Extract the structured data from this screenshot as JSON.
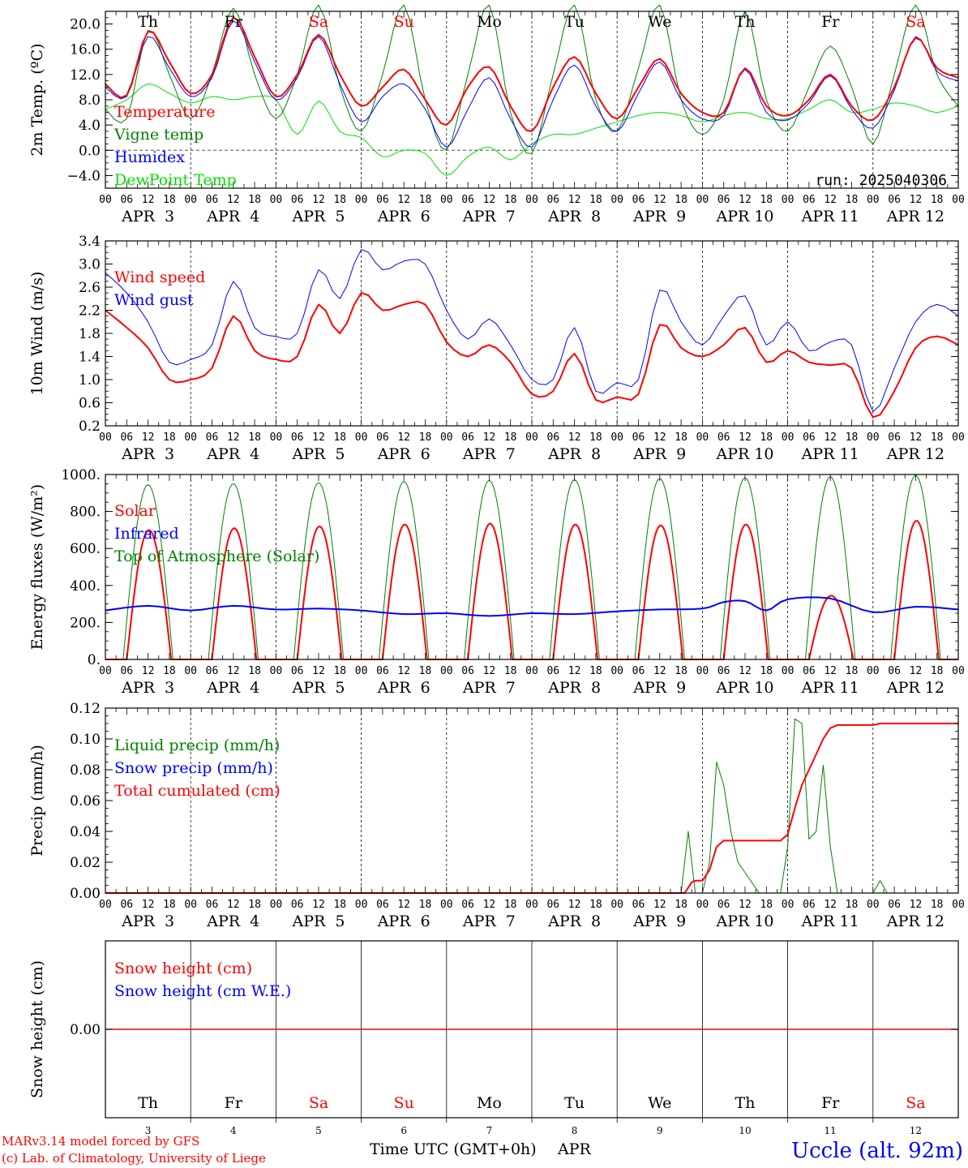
{
  "colors": {
    "red": "#ff0000",
    "green": "#008000",
    "blue": "#0000ff",
    "lightgreen": "#00e000",
    "axis": "#000000"
  },
  "days": [
    "Th",
    "Fr",
    "Sa",
    "Su",
    "Mo",
    "Tu",
    "We",
    "Th",
    "Fr",
    "Sa"
  ],
  "weekend": [
    false,
    false,
    true,
    true,
    false,
    false,
    false,
    false,
    false,
    true
  ],
  "date_labels": [
    "APR  3",
    "APR  4",
    "APR  5",
    "APR  6",
    "APR  7",
    "APR  8",
    "APR  9",
    "APR 10",
    "APR 11",
    "APR 12"
  ],
  "hour_labels": [
    "00",
    "06",
    "12",
    "18"
  ],
  "day_numbers": [
    "3",
    "4",
    "5",
    "6",
    "7",
    "8",
    "9",
    "10",
    "11",
    "12"
  ],
  "footer": {
    "model": "MARv3.14 model forced by GFS",
    "lab": "(c) Lab. of Climatology, University of Liege",
    "xlabel": "Time UTC (GMT+0h)",
    "month": "APR",
    "station": "Uccle (alt. 92m)"
  },
  "chart_data": [
    {
      "type": "line",
      "id": "temperature",
      "ylabel": "2m Temp. (ºC)",
      "ylim": [
        -6,
        22
      ],
      "yticks": [
        -4,
        0,
        4,
        8,
        12,
        16,
        20
      ],
      "ytick_labels": [
        "−4.0",
        "0.0",
        "4.0",
        "8.0",
        "12.0",
        "16.0",
        "20.0"
      ],
      "zero_line": true,
      "annotation": "run: 2025040306",
      "x_hours": [
        0,
        6,
        12,
        18,
        24,
        30,
        36,
        42,
        48,
        54,
        60,
        66,
        72,
        78,
        84,
        90,
        96,
        102,
        108,
        114,
        120,
        126,
        132,
        138,
        144,
        150,
        156,
        162,
        168,
        174,
        180,
        186,
        192,
        198,
        204,
        210,
        216,
        222,
        228,
        234,
        240
      ],
      "series": [
        {
          "name": "Temperature",
          "color": "red",
          "values": [
            10.5,
            8.7,
            18.8,
            14.0,
            9.0,
            12.0,
            21.0,
            14.8,
            8.5,
            12.0,
            18.3,
            12.0,
            7.0,
            10.0,
            12.8,
            8.0,
            4.0,
            10.0,
            13.2,
            7.0,
            3.0,
            10.0,
            14.8,
            9.0,
            5.0,
            10.0,
            14.5,
            9.0,
            6.0,
            6.0,
            13.0,
            7.0,
            5.5,
            8.0,
            12.0,
            7.0,
            4.8,
            10.0,
            17.8,
            13.0,
            11.5
          ]
        },
        {
          "name": "Vigne temp",
          "color": "green",
          "values": [
            6.5,
            5.0,
            19.0,
            12.0,
            5.0,
            12.0,
            22.5,
            12.0,
            5.0,
            12.0,
            23.0,
            10.0,
            3.0,
            12.0,
            23.0,
            8.0,
            0.0,
            12.0,
            23.0,
            6.0,
            -0.5,
            12.0,
            23.0,
            8.0,
            3.0,
            13.0,
            23.0,
            8.0,
            2.5,
            8.0,
            22.0,
            8.0,
            3.0,
            10.0,
            16.5,
            10.0,
            1.0,
            12.0,
            23.0,
            12.0,
            7.0
          ]
        },
        {
          "name": "Humidex",
          "color": "blue",
          "values": [
            10.0,
            8.5,
            18.0,
            13.0,
            8.5,
            11.5,
            20.5,
            14.0,
            8.0,
            11.5,
            18.0,
            10.5,
            4.5,
            8.5,
            10.5,
            6.5,
            0.5,
            6.5,
            11.5,
            5.0,
            0.5,
            8.0,
            13.5,
            7.0,
            3.0,
            9.0,
            14.0,
            8.0,
            5.0,
            5.5,
            12.8,
            6.0,
            4.8,
            7.5,
            11.8,
            6.5,
            3.5,
            9.5,
            18.0,
            12.5,
            11.0
          ]
        },
        {
          "name": "DewPoint Temp",
          "color": "lightgreen",
          "values": [
            6.5,
            8.0,
            10.5,
            9.0,
            7.5,
            8.5,
            8.0,
            8.5,
            8.0,
            2.5,
            7.8,
            3.0,
            2.0,
            -1.0,
            0.0,
            -0.5,
            -4.0,
            -1.0,
            0.5,
            -1.5,
            1.0,
            2.5,
            2.5,
            3.5,
            4.5,
            5.5,
            6.0,
            5.5,
            4.5,
            5.5,
            6.0,
            5.0,
            5.0,
            6.5,
            8.0,
            6.0,
            6.5,
            7.5,
            7.0,
            6.0,
            7.0
          ]
        }
      ]
    },
    {
      "type": "line",
      "id": "wind",
      "ylabel": "10m Wind (m/s)",
      "ylim": [
        0.2,
        3.4
      ],
      "yticks": [
        0.2,
        0.6,
        1.0,
        1.4,
        1.8,
        2.2,
        2.6,
        3.0,
        3.4
      ],
      "ytick_labels": [
        "0.2",
        "0.6",
        "1.0",
        "1.4",
        "1.8",
        "2.2",
        "2.6",
        "3.0",
        "3.4"
      ],
      "x_hours": [
        0,
        6,
        12,
        18,
        24,
        30,
        36,
        42,
        48,
        54,
        60,
        66,
        72,
        78,
        84,
        90,
        96,
        102,
        108,
        114,
        120,
        126,
        132,
        138,
        144,
        150,
        156,
        162,
        168,
        174,
        180,
        186,
        192,
        198,
        204,
        210,
        216,
        222,
        228,
        234,
        240
      ],
      "series": [
        {
          "name": "Wind speed",
          "color": "red",
          "values": [
            2.2,
            1.9,
            1.55,
            1.0,
            1.0,
            1.2,
            2.1,
            1.5,
            1.35,
            1.4,
            2.3,
            1.8,
            2.5,
            2.2,
            2.3,
            2.3,
            1.65,
            1.4,
            1.6,
            1.3,
            0.75,
            0.8,
            1.45,
            0.65,
            0.7,
            0.75,
            1.95,
            1.55,
            1.4,
            1.6,
            1.9,
            1.3,
            1.5,
            1.3,
            1.25,
            1.2,
            0.35,
            0.8,
            1.55,
            1.75,
            1.6
          ]
        },
        {
          "name": "Wind gust",
          "color": "blue",
          "values": [
            2.85,
            2.5,
            2.0,
            1.3,
            1.35,
            1.6,
            2.7,
            1.9,
            1.75,
            1.8,
            2.9,
            2.4,
            3.25,
            2.9,
            3.05,
            3.0,
            2.2,
            1.7,
            2.05,
            1.6,
            1.0,
            1.0,
            1.9,
            0.8,
            0.95,
            1.0,
            2.55,
            2.0,
            1.6,
            2.1,
            2.45,
            1.6,
            2.0,
            1.5,
            1.65,
            1.6,
            0.45,
            1.2,
            2.0,
            2.3,
            2.1
          ]
        }
      ]
    },
    {
      "type": "line",
      "id": "energy",
      "ylabel": "Energy fluxes (W/m²)",
      "ylim": [
        0,
        1000
      ],
      "yticks": [
        0,
        200,
        400,
        600,
        800,
        1000
      ],
      "ytick_labels": [
        "0.",
        "200.",
        "400.",
        "600.",
        "800.",
        "1000."
      ],
      "day_peaks": {
        "solar": [
          700,
          710,
          720,
          730,
          735,
          730,
          725,
          730,
          345,
          750
        ],
        "top_of_atmosphere": [
          945,
          950,
          955,
          962,
          968,
          972,
          978,
          982,
          988,
          995
        ]
      },
      "infrared_hours": [
        0,
        12,
        24,
        36,
        48,
        60,
        72,
        84,
        96,
        108,
        120,
        132,
        144,
        156,
        168,
        174,
        180,
        186,
        192,
        204,
        216,
        228,
        240
      ],
      "infrared_values": [
        265,
        290,
        265,
        290,
        270,
        275,
        265,
        245,
        250,
        235,
        250,
        245,
        260,
        270,
        275,
        310,
        315,
        265,
        325,
        330,
        255,
        285,
        270
      ],
      "series": [
        {
          "name": "Solar",
          "color": "red"
        },
        {
          "name": "Infrared",
          "color": "blue"
        },
        {
          "name": "Top of Atmosphere (Solar)",
          "color": "green"
        }
      ]
    },
    {
      "type": "line",
      "id": "precip",
      "ylabel": "Precip (mm/h)",
      "ylim": [
        0,
        0.12
      ],
      "yticks": [
        0,
        0.02,
        0.04,
        0.06,
        0.08,
        0.1,
        0.12
      ],
      "ytick_labels": [
        "0.00",
        "0.02",
        "0.04",
        "0.06",
        "0.08",
        "0.10",
        "0.12"
      ],
      "series": [
        {
          "name": "Liquid precip (mm/h)",
          "color": "green",
          "x_hours": [
            0,
            162,
            164,
            166,
            168,
            170,
            172,
            174,
            176,
            178,
            184,
            190,
            192,
            194,
            196,
            198,
            200,
            202,
            204,
            206,
            210,
            216,
            218,
            220,
            240
          ],
          "values": [
            0,
            0,
            0.04,
            0.0,
            0.0,
            0.02,
            0.085,
            0.07,
            0.04,
            0.02,
            0.0,
            0.0,
            0.03,
            0.113,
            0.11,
            0.035,
            0.04,
            0.083,
            0.03,
            0.0,
            0.0,
            0.0,
            0.008,
            0.0,
            0.0
          ]
        },
        {
          "name": "Snow precip (mm/h)",
          "color": "blue",
          "x_hours": [
            0,
            240
          ],
          "values": [
            0,
            0
          ]
        },
        {
          "name": "Total cumulated (cm)",
          "color": "red",
          "x_hours": [
            0,
            163,
            165,
            166,
            168,
            170,
            172,
            174,
            178,
            190,
            192,
            194,
            196,
            198,
            200,
            202,
            204,
            206,
            210,
            216,
            218,
            240
          ],
          "values": [
            0,
            0,
            0.007,
            0.008,
            0.008,
            0.015,
            0.03,
            0.034,
            0.034,
            0.034,
            0.038,
            0.055,
            0.07,
            0.08,
            0.09,
            0.1,
            0.107,
            0.109,
            0.109,
            0.109,
            0.11,
            0.11
          ]
        }
      ]
    },
    {
      "type": "line",
      "id": "snow",
      "ylabel": "Snow height (cm)",
      "ytick_labels": [
        "0.00"
      ],
      "series": [
        {
          "name": "Snow height (cm)",
          "color": "red",
          "values": [
            0,
            0
          ]
        },
        {
          "name": "Snow height (cm W.E.)",
          "color": "blue",
          "values": [
            0,
            0
          ]
        }
      ]
    }
  ]
}
